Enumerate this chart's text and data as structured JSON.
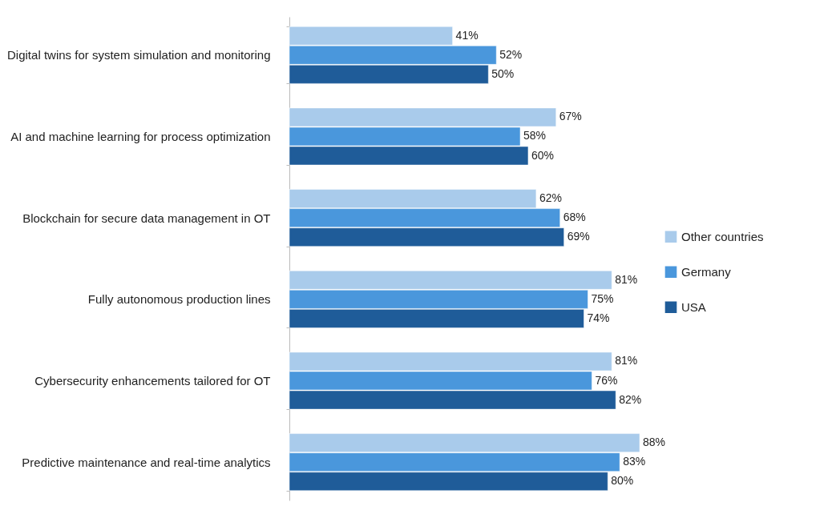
{
  "chart_data": {
    "type": "bar",
    "orientation": "horizontal",
    "categories": [
      "Digital twins for system simulation and monitoring",
      "AI and machine learning for process optimization",
      "Blockchain for secure data management in OT",
      "Fully autonomous production lines",
      "Cybersecurity enhancements tailored for OT",
      "Predictive maintenance and real-time analytics"
    ],
    "series": [
      {
        "name": "Other countries",
        "color": "#a9cbeb",
        "values": [
          41,
          67,
          62,
          81,
          81,
          88
        ],
        "value_labels": [
          "41%",
          "67%",
          "62%",
          "81%",
          "81%",
          "88%"
        ]
      },
      {
        "name": "Germany",
        "color": "#4a97dc",
        "values": [
          52,
          58,
          68,
          75,
          76,
          83
        ],
        "value_labels": [
          "52%",
          "58%",
          "68%",
          "75%",
          "76%",
          "83%"
        ]
      },
      {
        "name": "USA",
        "color": "#1f5c99",
        "values": [
          50,
          60,
          69,
          74,
          82,
          80
        ],
        "value_labels": [
          "50%",
          "60%",
          "69%",
          "74%",
          "82%",
          "80%"
        ]
      }
    ],
    "legend": "right",
    "grid": false
  }
}
